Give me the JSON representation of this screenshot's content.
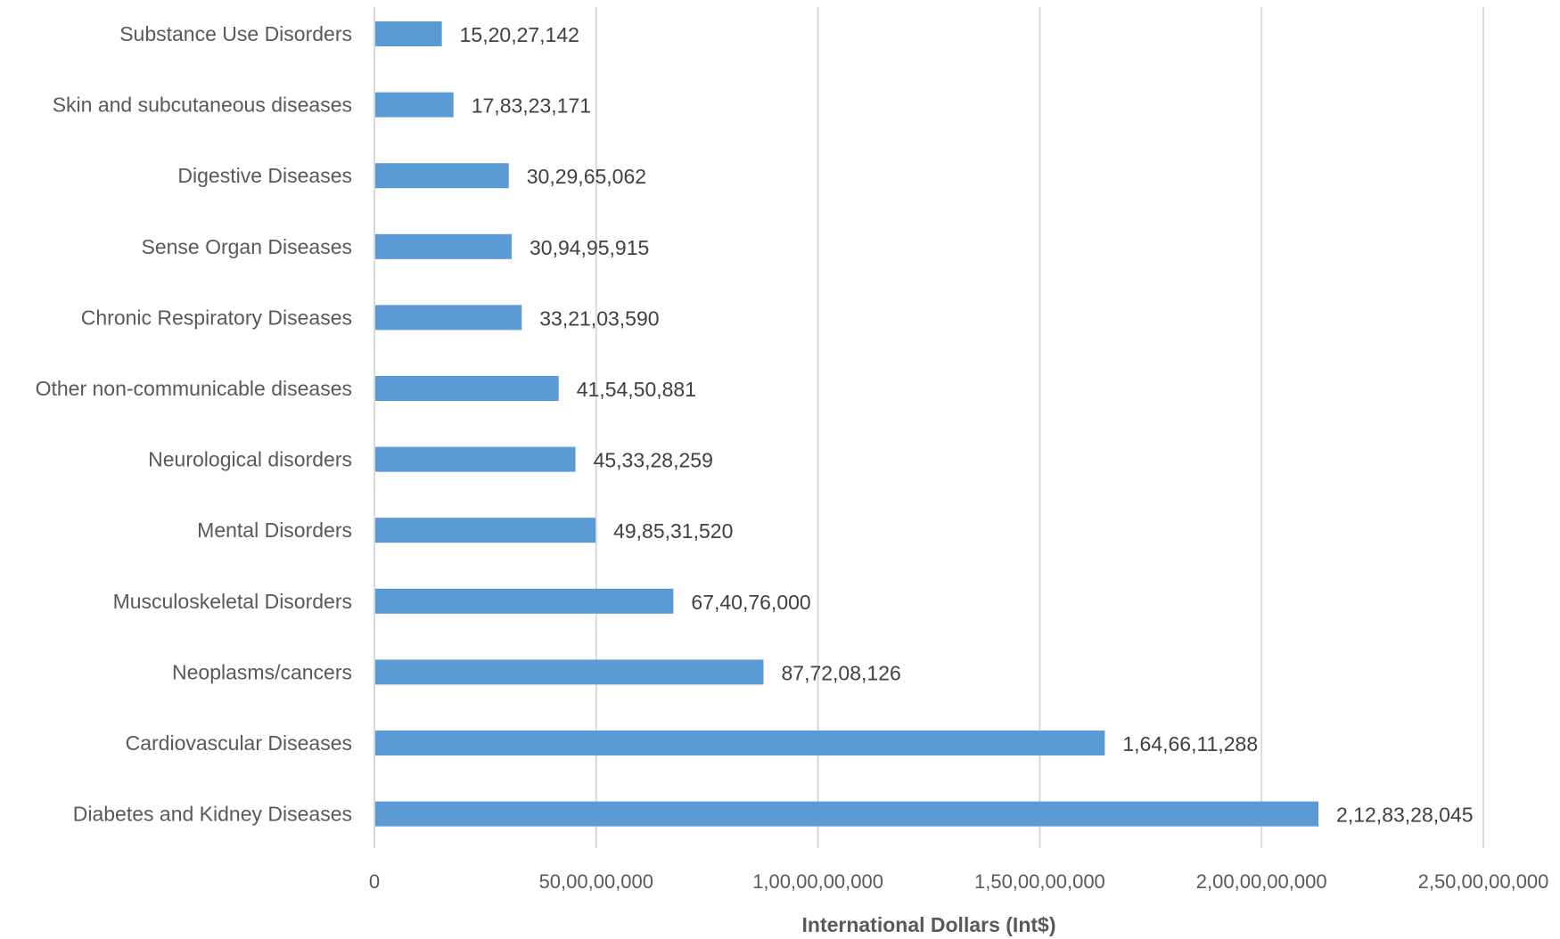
{
  "chart_data": {
    "type": "bar",
    "orientation": "horizontal",
    "categories": [
      "Substance Use Disorders",
      "Skin and subcutaneous diseases",
      "Digestive Diseases",
      "Sense Organ Diseases",
      "Chronic Respiratory Diseases",
      "Other non-communicable diseases",
      "Neurological disorders",
      "Mental Disorders",
      "Musculoskeletal Disorders",
      "Neoplasms/cancers",
      "Cardiovascular Diseases",
      "Diabetes and Kidney Diseases"
    ],
    "values": [
      152027142,
      178323171,
      302965062,
      309495915,
      332103590,
      415450881,
      453328259,
      498531520,
      674076000,
      877208126,
      1646611288,
      2128328045
    ],
    "value_labels": [
      "15,20,27,142",
      "17,83,23,171",
      "30,29,65,062",
      "30,94,95,915",
      "33,21,03,590",
      "41,54,50,881",
      "45,33,28,259",
      "49,85,31,520",
      "67,40,76,000",
      "87,72,08,126",
      "1,64,66,11,288",
      "2,12,83,28,045"
    ],
    "xlim": [
      0,
      2500000000
    ],
    "x_ticks": [
      0,
      500000000,
      1000000000,
      1500000000,
      2000000000,
      2500000000
    ],
    "x_tick_labels": [
      "0",
      "50,00,00,000",
      "1,00,00,00,000",
      "1,50,00,00,000",
      "2,00,00,00,000",
      "2,50,00,00,000"
    ],
    "xlabel": "International Dollars (Int$)",
    "ylabel": "",
    "title": "",
    "grid": "vertical",
    "legend": "none",
    "colors": {
      "bar": "#5B9BD5",
      "grid": "#D9D9D9",
      "axis": "#D9D9D9"
    }
  }
}
